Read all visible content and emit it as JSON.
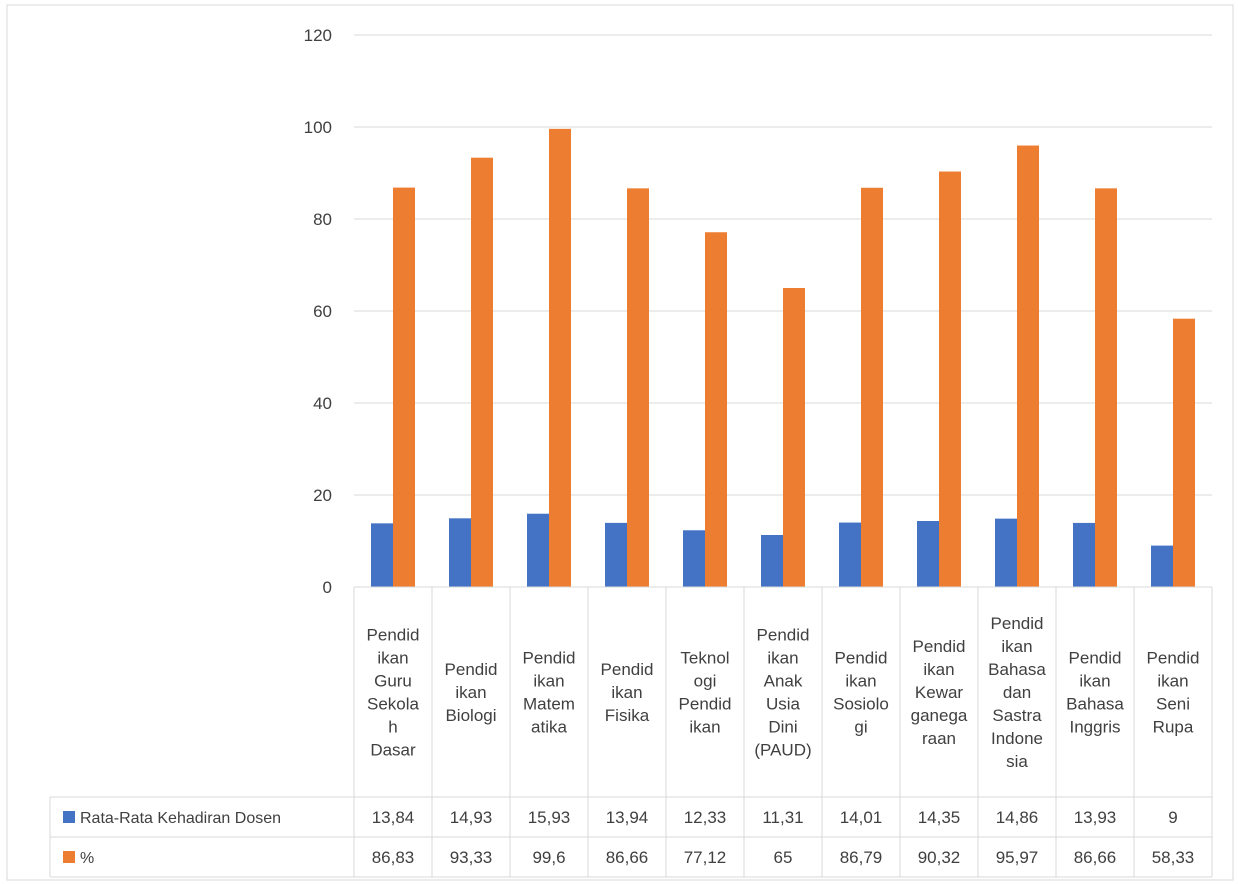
{
  "chart_data": {
    "type": "bar",
    "categories": [
      [
        "Pendid",
        "ikan",
        "Guru",
        "Sekola",
        "h",
        "Dasar"
      ],
      [
        "Pendid",
        "ikan",
        "Biologi"
      ],
      [
        "Pendid",
        "ikan",
        "Matem",
        "atika"
      ],
      [
        "Pendid",
        "ikan",
        "Fisika"
      ],
      [
        "Teknol",
        "ogi",
        "Pendid",
        "ikan"
      ],
      [
        "Pendid",
        "ikan",
        "Anak",
        "Usia",
        "Dini",
        "(PAUD)"
      ],
      [
        "Pendid",
        "ikan",
        "Sosiolo",
        "gi"
      ],
      [
        "Pendid",
        "ikan",
        "Kewar",
        "ganega",
        "raan"
      ],
      [
        "Pendid",
        "ikan",
        "Bahasa",
        "dan",
        "Sastra",
        "Indone",
        "sia"
      ],
      [
        "Pendid",
        "ikan",
        "Bahasa",
        "Inggris"
      ],
      [
        "Pendid",
        "ikan",
        "Seni",
        "Rupa"
      ]
    ],
    "series": [
      {
        "name": "Rata-Rata Kehadiran Dosen",
        "color": "#4472c4",
        "values": [
          13.84,
          14.93,
          15.93,
          13.94,
          12.33,
          11.31,
          14.01,
          14.35,
          14.86,
          13.93,
          9
        ],
        "labels": [
          "13,84",
          "14,93",
          "15,93",
          "13,94",
          "12,33",
          "11,31",
          "14,01",
          "14,35",
          "14,86",
          "13,93",
          "9"
        ]
      },
      {
        "name": "%",
        "color": "#ed7d31",
        "values": [
          86.83,
          93.33,
          99.6,
          86.66,
          77.12,
          65,
          86.79,
          90.32,
          95.97,
          86.66,
          58.33
        ],
        "labels": [
          "86,83",
          "93,33",
          "99,6",
          "86,66",
          "77,12",
          "65",
          "86,79",
          "90,32",
          "95,97",
          "86,66",
          "58,33"
        ]
      }
    ],
    "yticks": [
      "0",
      "20",
      "40",
      "60",
      "80",
      "100",
      "120"
    ],
    "ylim": [
      0,
      120
    ],
    "grid": true,
    "legend": "data-table"
  }
}
